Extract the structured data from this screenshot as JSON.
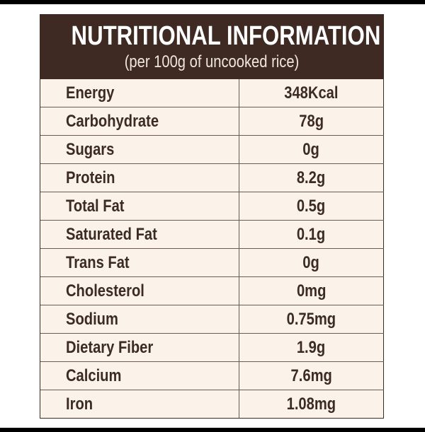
{
  "header": {
    "title": "NUTRITIONAL INFORMATION",
    "subtitle": "(per 100g of uncooked rice)"
  },
  "rows": [
    {
      "nutrient": "Energy",
      "value": "348Kcal"
    },
    {
      "nutrient": "Carbohydrate",
      "value": "78g"
    },
    {
      "nutrient": "Sugars",
      "value": "0g"
    },
    {
      "nutrient": "Protein",
      "value": "8.2g"
    },
    {
      "nutrient": "Total Fat",
      "value": "0.5g"
    },
    {
      "nutrient": "Saturated Fat",
      "value": "0.1g"
    },
    {
      "nutrient": "Trans Fat",
      "value": "0g"
    },
    {
      "nutrient": "Cholesterol",
      "value": "0mg"
    },
    {
      "nutrient": "Sodium",
      "value": "0.75mg"
    },
    {
      "nutrient": "Dietary Fiber",
      "value": "1.9g"
    },
    {
      "nutrient": "Calcium",
      "value": "7.6mg"
    },
    {
      "nutrient": "Iron",
      "value": "1.08mg"
    }
  ],
  "colors": {
    "header_background": "#3e2a22",
    "table_background": "#fbf2ea",
    "text": "#3b2b24",
    "frame": "#000000"
  }
}
